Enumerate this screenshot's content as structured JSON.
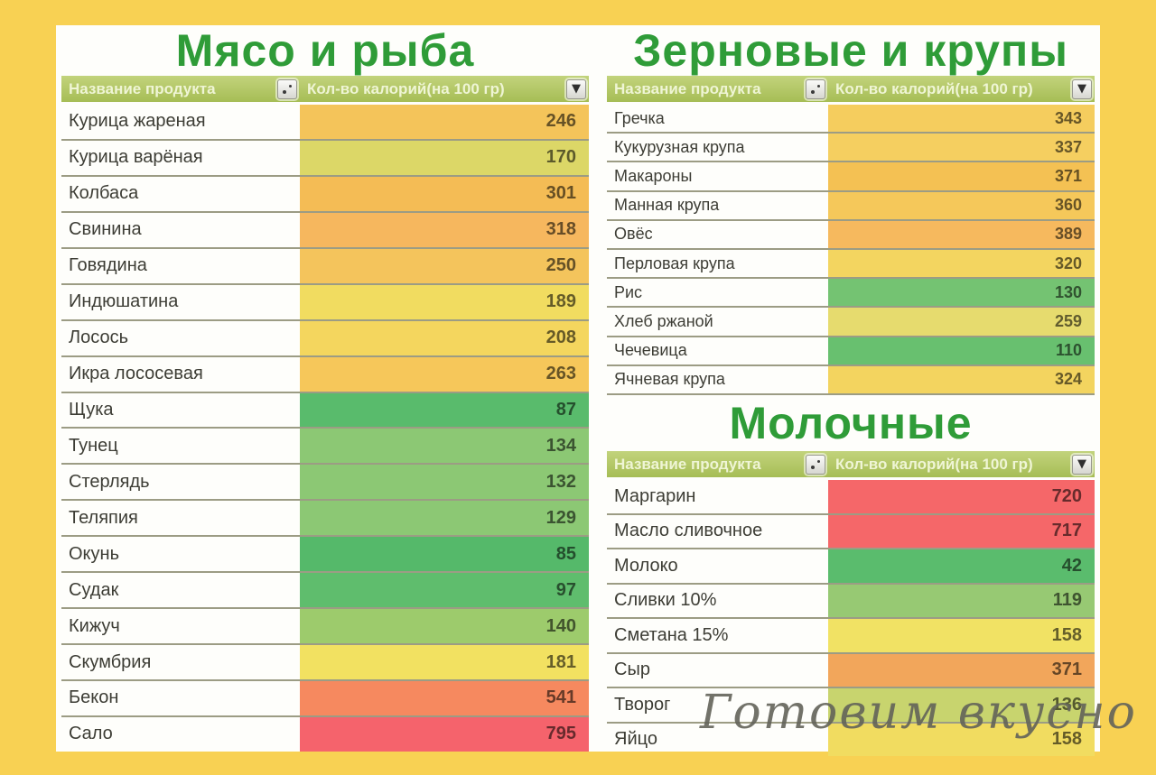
{
  "theme": {
    "frame_color": "#f8d153",
    "panel_color": "#fefefb",
    "title_color": "#2f9c38",
    "header_bg_top": "#c2d37c",
    "header_bg_bottom": "#a6bd55",
    "header_text_color": "#eff5d5",
    "row_divider_color": "#9c9c84",
    "name_text_color": "#3d3d35",
    "watermark_color": "#63635a"
  },
  "columns": {
    "name_header": "Название продукта",
    "value_header": "Кол-во калорий(на 100 гр)"
  },
  "watermark": {
    "text": "Готовим вкусно"
  },
  "tables": [
    {
      "title": "Мясо и рыба",
      "rows": [
        {
          "name": "Курица жареная",
          "value": "246",
          "color": "#f4c45a"
        },
        {
          "name": "Курица варёная",
          "value": "170",
          "color": "#dcd767"
        },
        {
          "name": "Колбаса",
          "value": "301",
          "color": "#f4bc55"
        },
        {
          "name": "Свинина",
          "value": "318",
          "color": "#f6b75e"
        },
        {
          "name": "Говядина",
          "value": "250",
          "color": "#f4c45c"
        },
        {
          "name": "Индюшатина",
          "value": "189",
          "color": "#f1dc60"
        },
        {
          "name": "Лосось",
          "value": "208",
          "color": "#f4d65e"
        },
        {
          "name": "Икра лососевая",
          "value": "263",
          "color": "#f6c75a"
        },
        {
          "name": "Щука",
          "value": "87",
          "color": "#59bb6c"
        },
        {
          "name": "Тунец",
          "value": "134",
          "color": "#8cc874"
        },
        {
          "name": "Стерлядь",
          "value": "132",
          "color": "#8cc874"
        },
        {
          "name": "Теляпия",
          "value": "129",
          "color": "#8cc874"
        },
        {
          "name": "Окунь",
          "value": "85",
          "color": "#55b96a"
        },
        {
          "name": "Судак",
          "value": "97",
          "color": "#5fbd6d"
        },
        {
          "name": "Кижуч",
          "value": "140",
          "color": "#9dcb6c"
        },
        {
          "name": "Скумбрия",
          "value": "181",
          "color": "#f2e161"
        },
        {
          "name": "Бекон",
          "value": "541",
          "color": "#f6895f"
        },
        {
          "name": "Сало",
          "value": "795",
          "color": "#f5636c"
        }
      ]
    },
    {
      "title": "Зерновые и крупы",
      "rows": [
        {
          "name": "Гречка",
          "value": "343",
          "color": "#f5cd5e"
        },
        {
          "name": "Кукурузная крупа",
          "value": "337",
          "color": "#f5cf60"
        },
        {
          "name": "Макароны",
          "value": "371",
          "color": "#f4c153"
        },
        {
          "name": "Манная крупа",
          "value": "360",
          "color": "#f5c85a"
        },
        {
          "name": "Овёс",
          "value": "389",
          "color": "#f6b95e"
        },
        {
          "name": "Перловая крупа",
          "value": "320",
          "color": "#f3d560"
        },
        {
          "name": "Рис",
          "value": "130",
          "color": "#74c372"
        },
        {
          "name": "Хлеб ржаной",
          "value": "259",
          "color": "#e6db6e"
        },
        {
          "name": "Чечевица",
          "value": "110",
          "color": "#68c06f"
        },
        {
          "name": "Ячневая крупа",
          "value": "324",
          "color": "#f3d45f"
        }
      ]
    },
    {
      "title": "Молочные",
      "rows": [
        {
          "name": "Маргарин",
          "value": "720",
          "color": "#f56769"
        },
        {
          "name": "Масло сливочное",
          "value": "717",
          "color": "#f56769"
        },
        {
          "name": "Молоко",
          "value": "42",
          "color": "#5abc6d"
        },
        {
          "name": "Сливки 10%",
          "value": "119",
          "color": "#97c973"
        },
        {
          "name": "Сметана 15%",
          "value": "158",
          "color": "#f1e264"
        },
        {
          "name": "Сыр",
          "value": "371",
          "color": "#f2a65b"
        },
        {
          "name": "Творог",
          "value": "136",
          "color": "#c8d46e"
        },
        {
          "name": "Яйцо",
          "value": "158",
          "color": "#f1dc60"
        }
      ]
    }
  ]
}
